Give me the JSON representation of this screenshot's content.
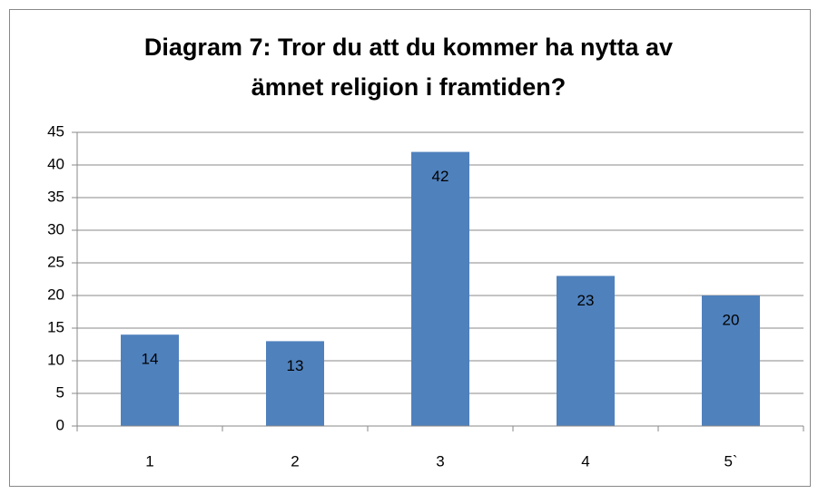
{
  "chart_data": {
    "type": "bar",
    "title": [
      "Diagram 7: Tror du att du kommer ha nytta av",
      "ämnet religion i framtiden?"
    ],
    "categories": [
      "1",
      "2",
      "3",
      "4",
      "5`"
    ],
    "values": [
      14,
      13,
      42,
      23,
      20
    ],
    "color": "#4f81bd",
    "ylim": [
      0,
      45
    ],
    "yticks": [
      0,
      5,
      10,
      15,
      20,
      25,
      30,
      35,
      40,
      45
    ],
    "grid": true
  }
}
